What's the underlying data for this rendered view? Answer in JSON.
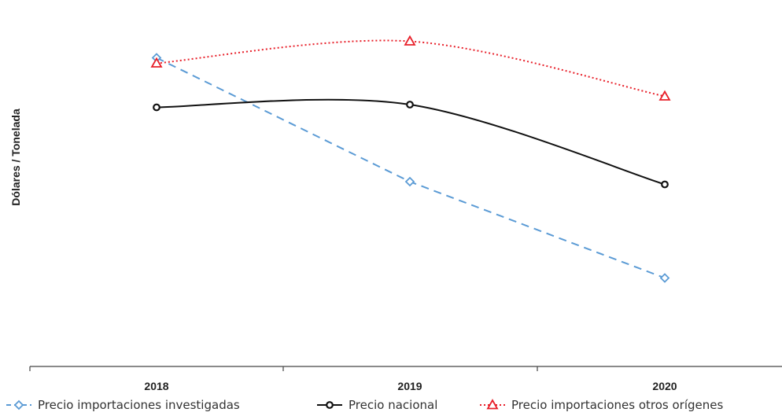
{
  "chart_data": {
    "type": "line",
    "title": "",
    "xlabel": "",
    "ylabel": "Dólares / Tonelada",
    "categories": [
      "2018",
      "2019",
      "2020"
    ],
    "ylim": [
      0,
      100
    ],
    "y_ticks_shown": false,
    "grid": false,
    "legend_position": "bottom",
    "series": [
      {
        "name": "Precio importaciones investigadas",
        "values": [
          95,
          50,
          15
        ],
        "color": "#5b9bd5",
        "line": "dashed",
        "marker": "diamond"
      },
      {
        "name": "Precio nacional",
        "values": [
          77,
          78,
          49
        ],
        "color": "#111111",
        "line": "solid",
        "marker": "circle"
      },
      {
        "name": "Precio importaciones otros orígenes",
        "values": [
          93,
          101,
          81
        ],
        "color": "#e8202a",
        "line": "dotted",
        "marker": "triangle"
      }
    ]
  }
}
